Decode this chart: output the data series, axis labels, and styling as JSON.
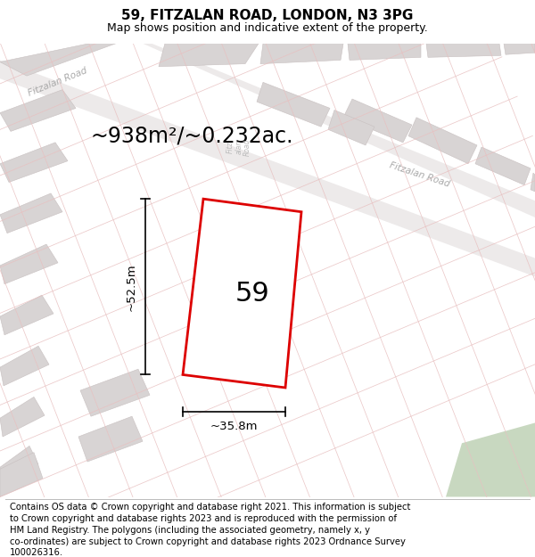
{
  "title": "59, FITZALAN ROAD, LONDON, N3 3PG",
  "subtitle": "Map shows position and indicative extent of the property.",
  "area_text": "~938m²/~0.232ac.",
  "width_text": "~35.8m",
  "height_text": "~52.5m",
  "number_text": "59",
  "footer_text": "Contains OS data © Crown copyright and database right 2021. This information is subject to Crown copyright and database rights 2023 and is reproduced with the permission of HM Land Registry. The polygons (including the associated geometry, namely x, y co-ordinates) are subject to Crown copyright and database rights 2023 Ordnance Survey 100026316.",
  "map_bg": "#f5f2f2",
  "road_fill": "#edeaea",
  "plot_outline_color": "#dd0000",
  "plot_fill_color": "#ffffff",
  "building_fill": "#d8d4d4",
  "building_stroke": "#c8c0c0",
  "green_fill": "#c8d8c0",
  "line_color": "#e8c0c0",
  "road_label_color": "#aaaaaa",
  "title_fontsize": 11,
  "subtitle_fontsize": 9,
  "area_fontsize": 17,
  "number_fontsize": 22,
  "dim_fontsize": 9.5,
  "footer_fontsize": 7.2,
  "road_label_fontsize": 7.5
}
